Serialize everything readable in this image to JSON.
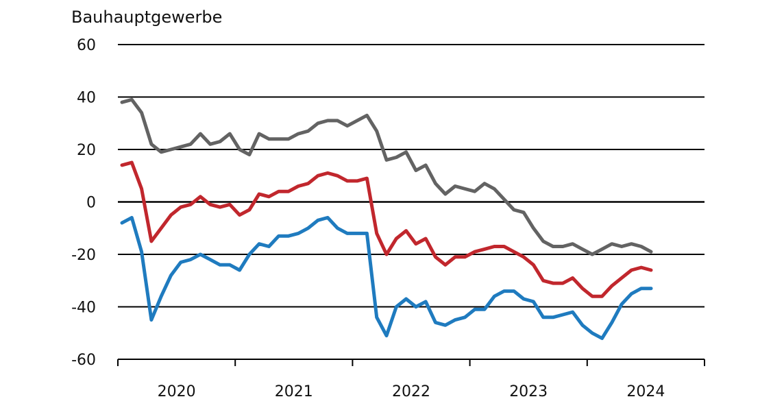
{
  "chart_data": {
    "type": "line",
    "title": "Bauhauptgewerbe",
    "ylim": [
      -60,
      60
    ],
    "yticks": [
      60,
      40,
      20,
      0,
      -20,
      -40,
      -60
    ],
    "xticks": [
      "2020",
      "2021",
      "2022",
      "2023",
      "2024"
    ],
    "grid": true,
    "series": [
      {
        "color": "#636363",
        "values": [
          38,
          39,
          34,
          22,
          19,
          20,
          21,
          22,
          26,
          22,
          23,
          26,
          20,
          18,
          26,
          24,
          24,
          24,
          26,
          27,
          30,
          31,
          31,
          29,
          31,
          33,
          27,
          16,
          17,
          19,
          12,
          14,
          7,
          3,
          6,
          5,
          4,
          7,
          5,
          1,
          -3,
          -4,
          -10,
          -15,
          -17,
          -17,
          -16,
          -18,
          -20,
          -18,
          -16,
          -17,
          -16,
          -17,
          -19
        ]
      },
      {
        "color": "#c1272d",
        "values": [
          14,
          15,
          5,
          -15,
          -10,
          -5,
          -2,
          -1,
          2,
          -1,
          -2,
          -1,
          -5,
          -3,
          3,
          2,
          4,
          4,
          6,
          7,
          10,
          11,
          10,
          8,
          8,
          9,
          -12,
          -20,
          -14,
          -11,
          -16,
          -14,
          -21,
          -24,
          -21,
          -21,
          -19,
          -18,
          -17,
          -17,
          -19,
          -21,
          -24,
          -30,
          -31,
          -31,
          -29,
          -33,
          -36,
          -36,
          -32,
          -29,
          -26,
          -25,
          -26
        ]
      },
      {
        "color": "#1f7bbf",
        "values": [
          -8,
          -6,
          -19,
          -45,
          -36,
          -28,
          -23,
          -22,
          -20,
          -22,
          -24,
          -24,
          -26,
          -20,
          -16,
          -17,
          -13,
          -13,
          -12,
          -10,
          -7,
          -6,
          -10,
          -12,
          -12,
          -12,
          -44,
          -51,
          -40,
          -37,
          -40,
          -38,
          -46,
          -47,
          -45,
          -44,
          -41,
          -41,
          -36,
          -34,
          -34,
          -37,
          -38,
          -44,
          -44,
          -43,
          -42,
          -47,
          -50,
          -52,
          -46,
          -39,
          -35,
          -33,
          -33
        ]
      }
    ]
  }
}
